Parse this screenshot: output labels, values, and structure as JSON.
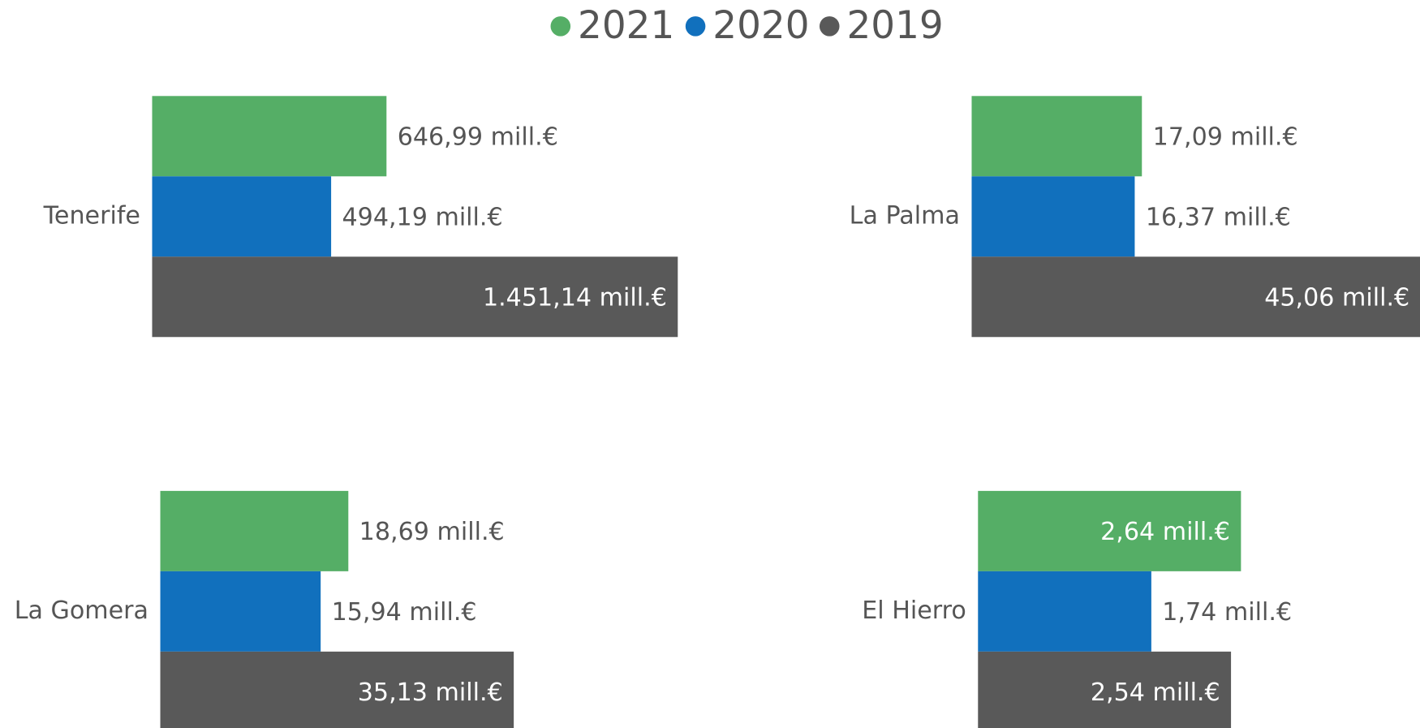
{
  "chart_data": [
    {
      "type": "bar",
      "categories": [
        "Tenerife"
      ],
      "xlim": [
        0,
        1500
      ],
      "series": [
        {
          "name": "2021",
          "color": "#55ae66",
          "values": [
            646.99
          ],
          "value_labels": [
            "646,99 mill.€"
          ]
        },
        {
          "name": "2020",
          "color": "#1170bd",
          "values": [
            494.19
          ],
          "value_labels": [
            "494,19 mill.€"
          ]
        },
        {
          "name": "2019",
          "color": "#595959",
          "values": [
            1451.14
          ],
          "value_labels": [
            "1.451,14 mill.€"
          ]
        }
      ]
    },
    {
      "type": "bar",
      "categories": [
        "La Palma"
      ],
      "xlim": [
        0,
        45
      ],
      "series": [
        {
          "name": "2021",
          "color": "#55ae66",
          "values": [
            17.09
          ],
          "value_labels": [
            "17,09 mill.€"
          ]
        },
        {
          "name": "2020",
          "color": "#1170bd",
          "values": [
            16.37
          ],
          "value_labels": [
            "16,37 mill.€"
          ]
        },
        {
          "name": "2019",
          "color": "#595959",
          "values": [
            45.06
          ],
          "value_labels": [
            "45,06 mill.€"
          ]
        }
      ]
    },
    {
      "type": "bar",
      "categories": [
        "La Gomera"
      ],
      "xlim": [
        0,
        54
      ],
      "series": [
        {
          "name": "2021",
          "color": "#55ae66",
          "values": [
            18.69
          ],
          "value_labels": [
            "18,69 mill.€"
          ]
        },
        {
          "name": "2020",
          "color": "#1170bd",
          "values": [
            15.94
          ],
          "value_labels": [
            "15,94 mill.€"
          ]
        },
        {
          "name": "2019",
          "color": "#595959",
          "values": [
            35.13
          ],
          "value_labels": [
            "35,13 mill.€"
          ]
        }
      ]
    },
    {
      "type": "bar",
      "categories": [
        "El Hierro"
      ],
      "xlim": [
        0,
        4.5
      ],
      "series": [
        {
          "name": "2021",
          "color": "#55ae66",
          "values": [
            2.64
          ],
          "value_labels": [
            "2,64 mill.€"
          ]
        },
        {
          "name": "2020",
          "color": "#1170bd",
          "values": [
            1.74
          ],
          "value_labels": [
            "1,74 mill.€"
          ]
        },
        {
          "name": "2019",
          "color": "#595959",
          "values": [
            2.54
          ],
          "value_labels": [
            "2,54 mill.€"
          ]
        }
      ]
    }
  ]
}
